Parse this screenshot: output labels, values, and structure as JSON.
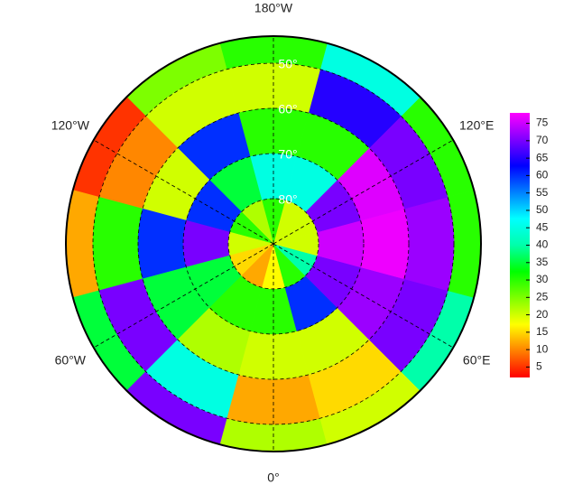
{
  "map": {
    "type": "polar-heatmap",
    "latlim": [
      44,
      90
    ],
    "lon_centers": [
      0,
      30,
      60,
      90,
      120,
      150,
      180,
      -150,
      -120,
      -90,
      -60,
      -30
    ],
    "lat_edges": [
      44,
      50,
      60,
      70,
      80,
      90
    ],
    "values": [
      [
        22,
        20,
        40,
        30,
        30,
        45,
        30,
        25,
        5,
        12,
        35,
        70
      ],
      [
        12,
        15,
        70,
        72,
        70,
        65,
        20,
        20,
        10,
        30,
        70,
        45
      ],
      [
        20,
        20,
        72,
        77,
        76,
        30,
        30,
        60,
        20,
        60,
        35,
        22
      ],
      [
        30,
        60,
        70,
        75,
        70,
        45,
        45,
        35,
        60,
        70,
        35,
        30
      ],
      [
        17,
        30,
        40,
        20,
        20,
        20,
        30,
        22,
        30,
        20,
        15,
        12
      ]
    ],
    "meridians": [
      {
        "value": 180,
        "label": "180°W"
      },
      {
        "value": -120,
        "label": "120°W"
      },
      {
        "value": 120,
        "label": "120°E"
      },
      {
        "value": -60,
        "label": "60°W"
      },
      {
        "value": 60,
        "label": "60°E"
      },
      {
        "value": 0,
        "label": "0°"
      }
    ],
    "parallels": [
      {
        "value": 50,
        "label": "50°"
      },
      {
        "value": 60,
        "label": "60°"
      },
      {
        "value": 70,
        "label": "70°"
      },
      {
        "value": 80,
        "label": "80°"
      }
    ],
    "colorbar": {
      "clim": [
        2,
        78
      ],
      "ticks": [
        5,
        10,
        15,
        20,
        25,
        30,
        35,
        40,
        45,
        50,
        55,
        60,
        65,
        70,
        75
      ],
      "colormap": [
        "#ff0000",
        "#ff8000",
        "#ffff00",
        "#80ff00",
        "#00ff00",
        "#00ffaa",
        "#00ffff",
        "#0080ff",
        "#0000ff",
        "#8000ff",
        "#ff00ff"
      ]
    }
  }
}
